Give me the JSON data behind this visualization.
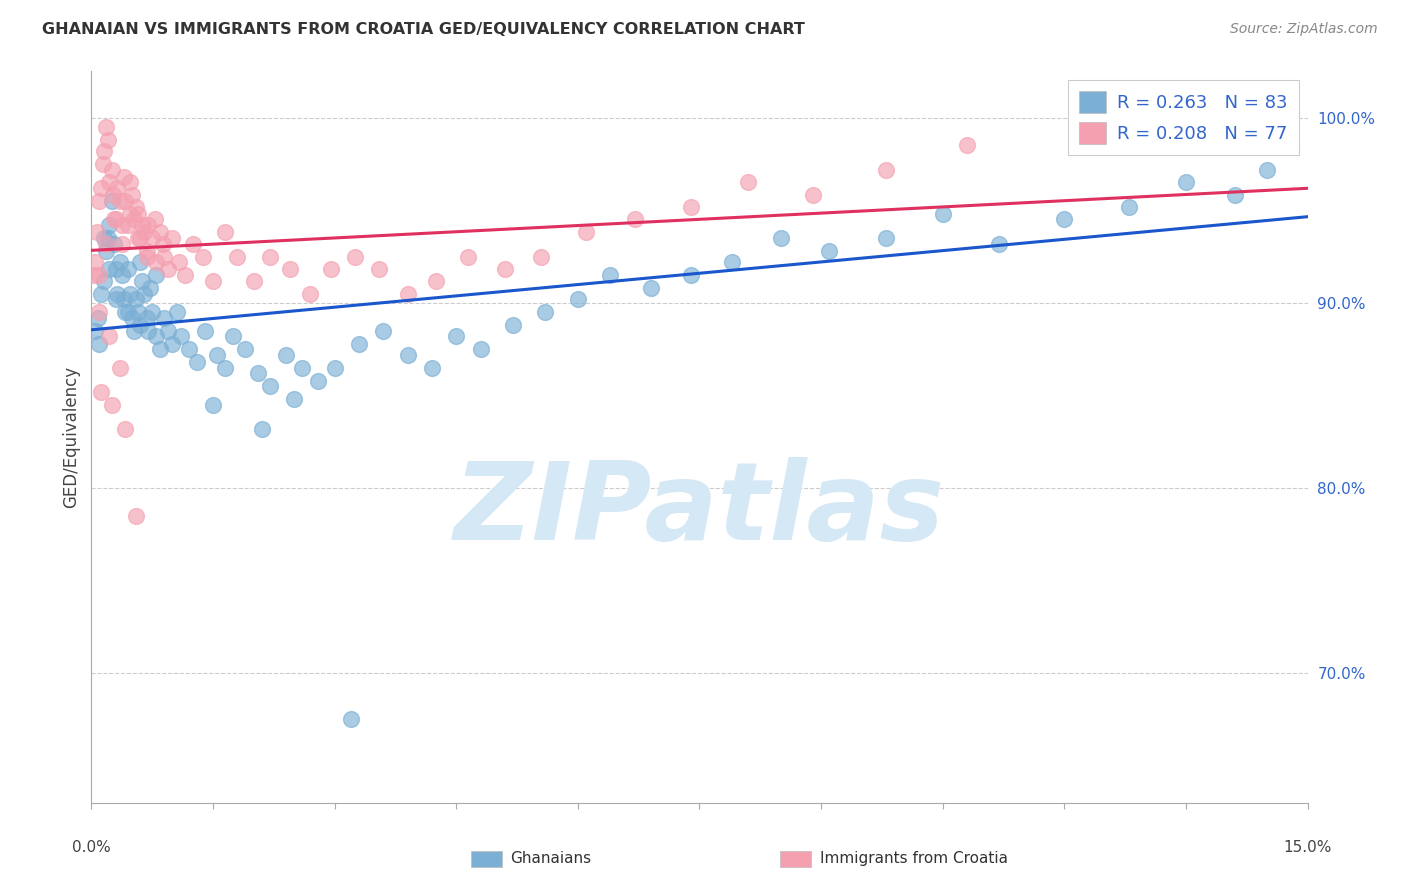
{
  "title": "GHANAIAN VS IMMIGRANTS FROM CROATIA GED/EQUIVALENCY CORRELATION CHART",
  "source": "Source: ZipAtlas.com",
  "ylabel": "GED/Equivalency",
  "x_min": 0.0,
  "x_max": 15.0,
  "y_min": 63.0,
  "y_max": 102.5,
  "y_ticks": [
    70.0,
    80.0,
    90.0,
    100.0
  ],
  "y_tick_labels": [
    "70.0%",
    "80.0%",
    "90.0%",
    "100.0%"
  ],
  "blue_R": 0.263,
  "blue_N": 83,
  "pink_R": 0.208,
  "pink_N": 77,
  "blue_label": "Ghanaians",
  "pink_label": "Immigrants from Croatia",
  "blue_color": "#7BAFD4",
  "pink_color": "#F4A0B0",
  "blue_line_color": "#1A56CC",
  "pink_line_color": "#E03060",
  "watermark_color": "#D5E8F5",
  "background_color": "#FFFFFF",
  "grid_color": "#CCCCCC",
  "spine_color": "#AAAAAA",
  "blue_x": [
    0.05,
    0.08,
    0.1,
    0.12,
    0.15,
    0.18,
    0.2,
    0.22,
    0.25,
    0.28,
    0.3,
    0.32,
    0.35,
    0.38,
    0.4,
    0.42,
    0.45,
    0.48,
    0.5,
    0.52,
    0.55,
    0.58,
    0.6,
    0.62,
    0.65,
    0.68,
    0.7,
    0.72,
    0.75,
    0.8,
    0.85,
    0.9,
    0.95,
    1.0,
    1.05,
    1.1,
    1.2,
    1.3,
    1.4,
    1.55,
    1.65,
    1.75,
    1.9,
    2.05,
    2.2,
    2.4,
    2.6,
    2.8,
    3.0,
    3.3,
    3.6,
    3.9,
    4.2,
    4.5,
    4.8,
    5.2,
    5.6,
    6.0,
    6.4,
    6.9,
    7.4,
    7.9,
    8.5,
    9.1,
    9.8,
    10.5,
    11.2,
    12.0,
    12.8,
    13.5,
    14.1,
    14.5,
    14.8,
    0.15,
    0.22,
    0.3,
    0.45,
    0.6,
    0.8,
    1.5,
    2.1,
    2.5,
    3.2
  ],
  "blue_y": [
    88.5,
    89.2,
    87.8,
    90.5,
    91.2,
    92.8,
    93.5,
    94.2,
    95.5,
    93.2,
    91.8,
    90.5,
    92.2,
    91.5,
    90.2,
    89.5,
    91.8,
    90.5,
    89.2,
    88.5,
    90.2,
    89.5,
    88.8,
    91.2,
    90.5,
    89.2,
    88.5,
    90.8,
    89.5,
    88.2,
    87.5,
    89.2,
    88.5,
    87.8,
    89.5,
    88.2,
    87.5,
    86.8,
    88.5,
    87.2,
    86.5,
    88.2,
    87.5,
    86.2,
    85.5,
    87.2,
    86.5,
    85.8,
    86.5,
    87.8,
    88.5,
    87.2,
    86.5,
    88.2,
    87.5,
    88.8,
    89.5,
    90.2,
    91.5,
    90.8,
    91.5,
    92.2,
    93.5,
    92.8,
    93.5,
    94.8,
    93.2,
    94.5,
    95.2,
    96.5,
    95.8,
    97.2,
    98.5,
    93.5,
    91.8,
    90.2,
    89.5,
    92.2,
    91.5,
    84.5,
    83.2,
    84.8,
    67.5
  ],
  "pink_x": [
    0.03,
    0.05,
    0.07,
    0.09,
    0.12,
    0.14,
    0.16,
    0.18,
    0.2,
    0.22,
    0.25,
    0.27,
    0.3,
    0.32,
    0.35,
    0.38,
    0.4,
    0.42,
    0.45,
    0.48,
    0.5,
    0.52,
    0.55,
    0.58,
    0.6,
    0.62,
    0.65,
    0.68,
    0.7,
    0.75,
    0.8,
    0.85,
    0.9,
    0.95,
    1.0,
    1.08,
    1.15,
    1.25,
    1.38,
    1.5,
    1.65,
    1.8,
    2.0,
    2.2,
    2.45,
    2.7,
    2.95,
    3.25,
    3.55,
    3.9,
    4.25,
    4.65,
    5.1,
    5.55,
    6.1,
    6.7,
    7.4,
    8.1,
    8.9,
    9.8,
    10.8,
    0.1,
    0.18,
    0.28,
    0.38,
    0.48,
    0.58,
    0.68,
    0.78,
    0.88,
    0.1,
    0.22,
    0.35,
    0.12,
    0.25,
    0.42,
    0.55
  ],
  "pink_y": [
    91.5,
    92.2,
    93.8,
    95.5,
    96.2,
    97.5,
    98.2,
    99.5,
    98.8,
    96.5,
    97.2,
    95.8,
    94.5,
    96.2,
    95.5,
    94.2,
    96.8,
    95.5,
    94.2,
    96.5,
    95.8,
    94.5,
    95.2,
    94.8,
    93.5,
    94.2,
    93.8,
    92.5,
    94.2,
    93.5,
    92.2,
    93.8,
    92.5,
    91.8,
    93.5,
    92.2,
    91.5,
    93.2,
    92.5,
    91.2,
    93.8,
    92.5,
    91.2,
    92.5,
    91.8,
    90.5,
    91.8,
    92.5,
    91.8,
    90.5,
    91.2,
    92.5,
    91.8,
    92.5,
    93.8,
    94.5,
    95.2,
    96.5,
    95.8,
    97.2,
    98.5,
    91.5,
    93.2,
    94.5,
    93.2,
    94.8,
    93.5,
    92.8,
    94.5,
    93.2,
    89.5,
    88.2,
    86.5,
    85.2,
    84.5,
    83.2,
    78.5
  ]
}
